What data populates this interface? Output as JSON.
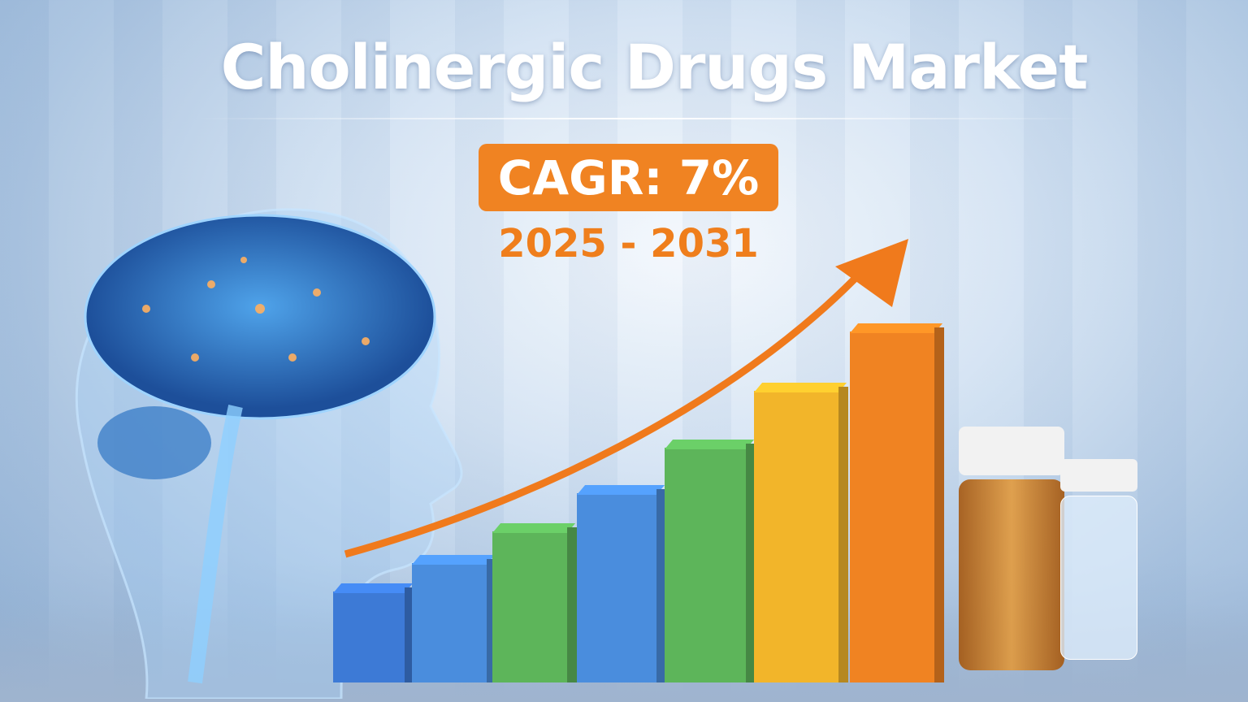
{
  "title": "Cholinergic Drugs Market",
  "cagr": "CAGR: 7%",
  "period": "2025 - 2031",
  "colors": {
    "accent": "#f08322",
    "title": "#ffffff"
  },
  "bars": [
    {
      "color": "#3d7ad6",
      "level": 0.26
    },
    {
      "color": "#4a8ddd",
      "level": 0.34
    },
    {
      "color": "#5db55a",
      "level": 0.43
    },
    {
      "color": "#4a8ddd",
      "level": 0.54
    },
    {
      "color": "#5db55a",
      "level": 0.67
    },
    {
      "color": "#f2b52a",
      "level": 0.83
    },
    {
      "color": "#f08322",
      "level": 1.0
    }
  ],
  "icons": {
    "brain": "brain-head-icon",
    "arrow": "growth-arrow-icon",
    "pills": "pill-bottle-icon"
  }
}
